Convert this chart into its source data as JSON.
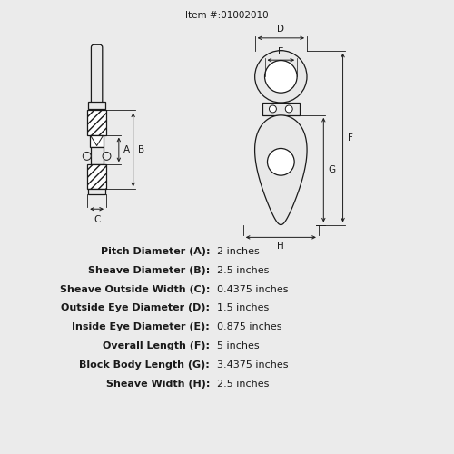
{
  "title": "Item #:01002010",
  "bg_color": "#f0f0f0",
  "line_color": "#1a1a1a",
  "specs": [
    {
      "label": "Pitch Diameter (A):",
      "value": "2 inches"
    },
    {
      "label": "Sheave Diameter (B):",
      "value": "2.5 inches"
    },
    {
      "label": "Sheave Outside Width (C):",
      "value": "0.4375 inches"
    },
    {
      "label": "Outside Eye Diameter (D):",
      "value": "1.5 inches"
    },
    {
      "label": "Inside Eye Diameter (E):",
      "value": "0.875 inches"
    },
    {
      "label": "Overall Length (F):",
      "value": "5 inches"
    },
    {
      "label": "Block Body Length (G):",
      "value": "3.4375 inches"
    },
    {
      "label": "Sheave Width (H):",
      "value": "2.5 inches"
    }
  ],
  "fig_w": 5.0,
  "fig_h": 5.0,
  "dpi": 100
}
